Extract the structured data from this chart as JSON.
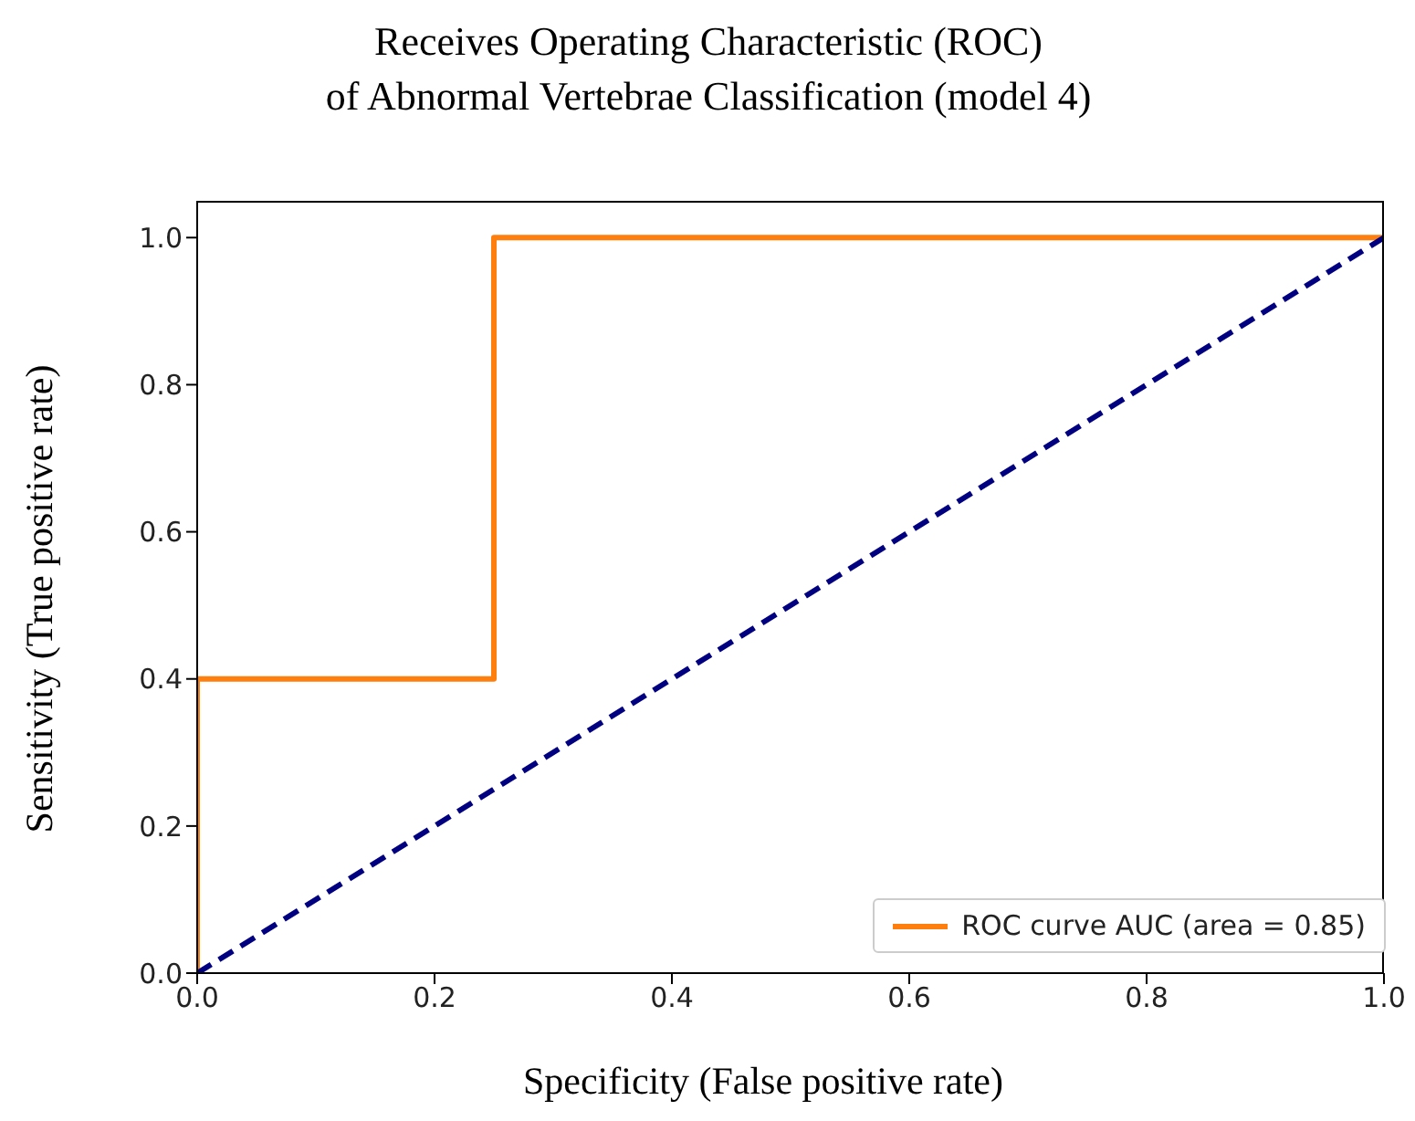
{
  "chart_data": {
    "type": "line",
    "title": "Receives Operating Characteristic (ROC)\nof Abnormal Vertebrae Classification (model 4)",
    "xlabel": "Specificity (False positive rate)",
    "ylabel": "Sensitivity (True positive rate)",
    "series": [
      {
        "name": "ROC curve AUC (area = 0.85)",
        "color": "#ff7f0e",
        "x": [
          0,
          0,
          0.25,
          0.25,
          1
        ],
        "values": [
          0,
          0.4,
          0.4,
          1,
          1
        ],
        "line_style": "solid"
      },
      {
        "color": "#000080",
        "x": [
          0,
          1
        ],
        "values": [
          0,
          1
        ],
        "line_style": "dashed"
      }
    ],
    "xlim": [
      0,
      1
    ],
    "ylim": [
      0,
      1.05
    ],
    "xticks": [
      {
        "value": 0,
        "label": "0.0"
      },
      0.2,
      0.4,
      0.6,
      0.8,
      {
        "value": 1,
        "label": "1.0"
      }
    ],
    "yticks": [
      {
        "value": 0,
        "label": "0.0"
      },
      0.2,
      0.4,
      0.6,
      0.8,
      {
        "value": 1,
        "label": "1.0"
      }
    ],
    "grid": false,
    "legend": "bottom right",
    "marker": "none"
  }
}
